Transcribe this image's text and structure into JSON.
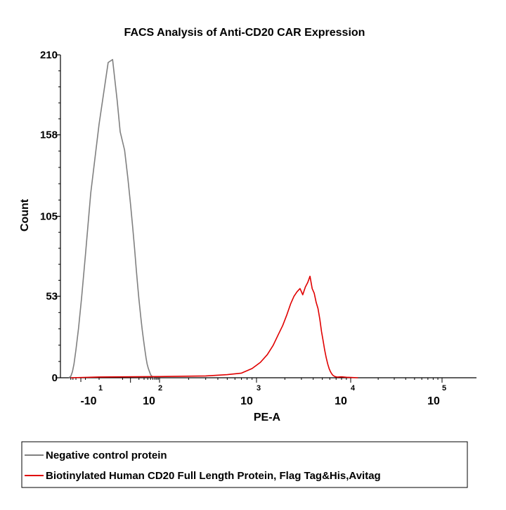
{
  "chart_data": {
    "type": "histogram",
    "title": "FACS Analysis of Anti-CD20 CAR Expression",
    "xlabel": "PE-A",
    "ylabel": "Count",
    "ylim": [
      0,
      210
    ],
    "yticks": [
      {
        "value": 0,
        "label": "0"
      },
      {
        "value": 53,
        "label": "53"
      },
      {
        "value": 105,
        "label": "105"
      },
      {
        "value": 158,
        "label": "158"
      },
      {
        "value": 210,
        "label": "210"
      }
    ],
    "x_scale": "biexponential",
    "xticks": [
      {
        "base": "-10",
        "exp": "1"
      },
      {
        "base": "10",
        "exp": "2"
      },
      {
        "base": "10",
        "exp": "3"
      },
      {
        "base": "10",
        "exp": "4"
      },
      {
        "base": "10",
        "exp": "5"
      }
    ],
    "legend_position": "bottom",
    "series": [
      {
        "name": "Negative control protein",
        "color": "#808080",
        "points": [
          [
            -52,
            0
          ],
          [
            -40,
            1
          ],
          [
            -32,
            4
          ],
          [
            -26,
            9
          ],
          [
            -20,
            18
          ],
          [
            -14,
            32
          ],
          [
            -9,
            52
          ],
          [
            -5,
            80
          ],
          [
            -2,
            120
          ],
          [
            0,
            165
          ],
          [
            1,
            205
          ],
          [
            1.8,
            207
          ],
          [
            3,
            180
          ],
          [
            4,
            160
          ],
          [
            6,
            148
          ],
          [
            8,
            130
          ],
          [
            10,
            113
          ],
          [
            12,
            98
          ],
          [
            14,
            84
          ],
          [
            16,
            71
          ],
          [
            18,
            60
          ],
          [
            20,
            51
          ],
          [
            23,
            40
          ],
          [
            26,
            31
          ],
          [
            29,
            24
          ],
          [
            32,
            18
          ],
          [
            35,
            13
          ],
          [
            38,
            9
          ],
          [
            42,
            6
          ],
          [
            46,
            4
          ],
          [
            50,
            2
          ],
          [
            55,
            1
          ],
          [
            60,
            0.5
          ],
          [
            65,
            0
          ]
        ]
      },
      {
        "name": "Biotinylated Human CD20 Full Length Protein, Flag Tag&His,Avitag",
        "color": "#e00000",
        "points": [
          [
            -40,
            0
          ],
          [
            0,
            0.5
          ],
          [
            100,
            0.8
          ],
          [
            300,
            1.2
          ],
          [
            500,
            2
          ],
          [
            700,
            3
          ],
          [
            900,
            6
          ],
          [
            1100,
            10
          ],
          [
            1300,
            15
          ],
          [
            1500,
            21
          ],
          [
            1700,
            28
          ],
          [
            1900,
            34
          ],
          [
            2100,
            41
          ],
          [
            2300,
            48
          ],
          [
            2500,
            53
          ],
          [
            2700,
            56
          ],
          [
            2900,
            58
          ],
          [
            3100,
            54
          ],
          [
            3300,
            59
          ],
          [
            3500,
            62
          ],
          [
            3700,
            66
          ],
          [
            3900,
            58
          ],
          [
            4100,
            55
          ],
          [
            4300,
            49
          ],
          [
            4500,
            45
          ],
          [
            4700,
            38
          ],
          [
            4900,
            30
          ],
          [
            5100,
            24
          ],
          [
            5300,
            18
          ],
          [
            5500,
            13
          ],
          [
            5700,
            9
          ],
          [
            5900,
            6
          ],
          [
            6100,
            4
          ],
          [
            6300,
            2.5
          ],
          [
            6500,
            1.5
          ],
          [
            6800,
            0.8
          ],
          [
            7200,
            0.4
          ],
          [
            8000,
            0.6
          ],
          [
            9000,
            0.3
          ],
          [
            10000,
            0.2
          ],
          [
            12000,
            0
          ]
        ]
      }
    ]
  }
}
